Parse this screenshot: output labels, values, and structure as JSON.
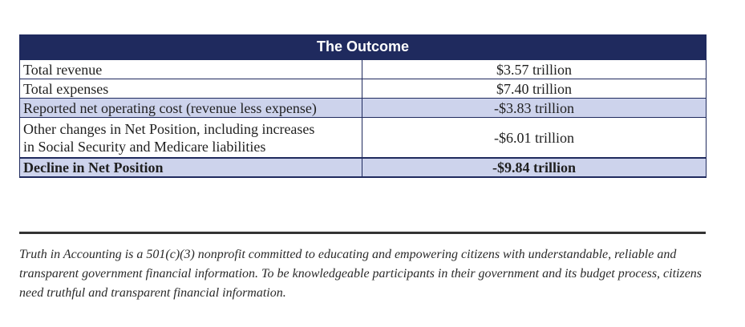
{
  "table": {
    "title": "The Outcome",
    "rows": [
      {
        "label": "Total revenue",
        "value": "$3.57 trillion"
      },
      {
        "label": "Total expenses",
        "value": "$7.40 trillion"
      },
      {
        "label": "Reported net operating cost (revenue less expense)",
        "value": "-$3.83 trillion"
      },
      {
        "label_line1": "Other changes in Net Position, including increases",
        "label_line2": "in Social Security and Medicare liabilities",
        "value": "-$6.01 trillion"
      },
      {
        "label": "Decline in Net Position",
        "value": "-$9.84 trillion"
      }
    ],
    "colors": {
      "header_bg": "#1f2a5e",
      "shaded_row_bg": "#cdd3ec",
      "border": "#1f2a5e"
    }
  },
  "footer": {
    "text": "Truth in Accounting is a 501(c)(3) nonprofit committed to educating and empowering citizens with understandable, reliable and transparent government financial information. To be knowledgeable participants in their government and its budget process, citizens need truthful and transparent financial information."
  }
}
